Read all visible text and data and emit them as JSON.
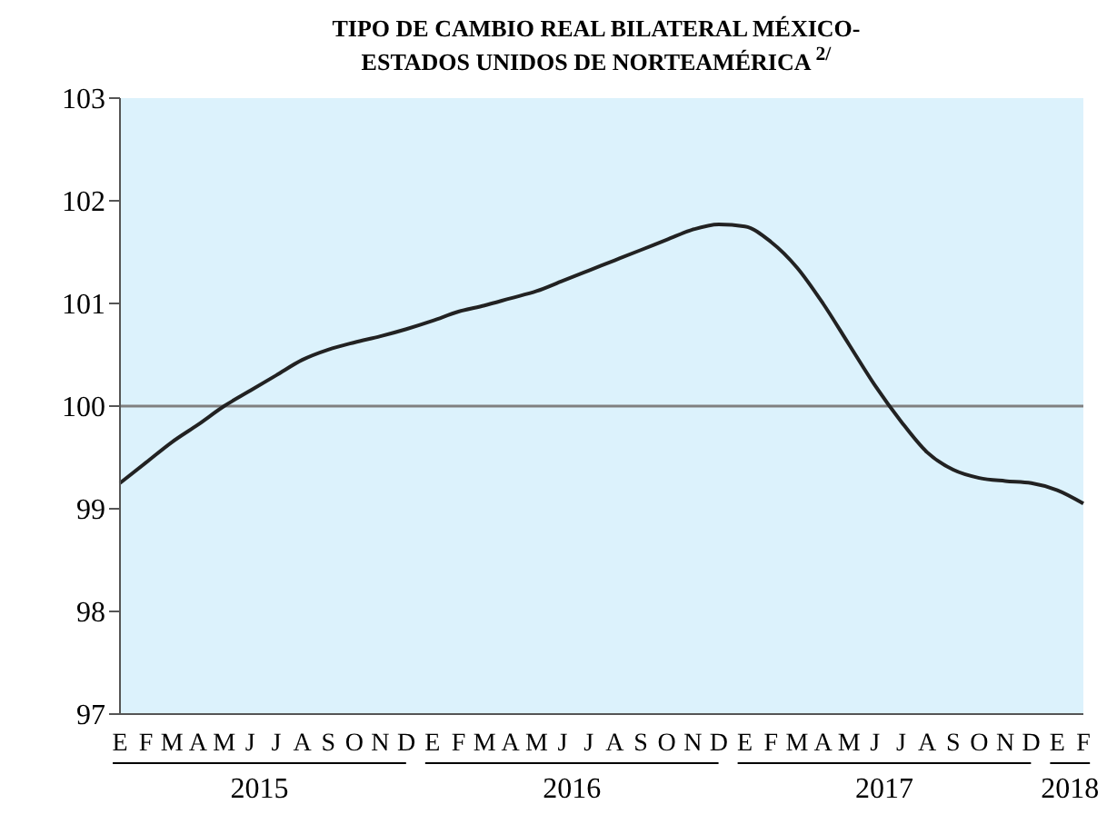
{
  "chart_data": {
    "type": "line",
    "title": "TIPO DE CAMBIO REAL BILATERAL MÉXICO-ESTADOS UNIDOS DE NORTEAMÉRICA $^{2/}$",
    "categories": [
      "E",
      "F",
      "M",
      "A",
      "M",
      "J",
      "J",
      "A",
      "S",
      "O",
      "N",
      "D",
      "E",
      "F",
      "M",
      "A",
      "M",
      "J",
      "J",
      "A",
      "S",
      "O",
      "N",
      "D",
      "E",
      "F",
      "M",
      "A",
      "M",
      "J",
      "J",
      "A",
      "S",
      "O",
      "N",
      "D",
      "E",
      "F"
    ],
    "series": [
      {
        "color": "#222222",
        "values": [
          99.25,
          99.45,
          99.65,
          99.82,
          100.0,
          100.15,
          100.3,
          100.45,
          100.55,
          100.62,
          100.68,
          100.75,
          100.83,
          100.92,
          100.98,
          101.05,
          101.12,
          101.22,
          101.32,
          101.42,
          101.52,
          101.62,
          101.72,
          101.77,
          101.75,
          101.6,
          101.35,
          101.0,
          100.6,
          100.2,
          99.85,
          99.55,
          99.38,
          99.3,
          99.27,
          99.25,
          99.18,
          99.05
        ]
      }
    ],
    "ylim": [
      97,
      103
    ],
    "yticks": [
      97,
      98,
      99,
      100,
      101,
      102,
      103
    ],
    "ref_lines": [
      {
        "axis": "y",
        "value": 100,
        "color": "#808080"
      }
    ],
    "annotations": [
      "2015",
      "2016",
      "2017",
      "2018"
    ]
  }
}
